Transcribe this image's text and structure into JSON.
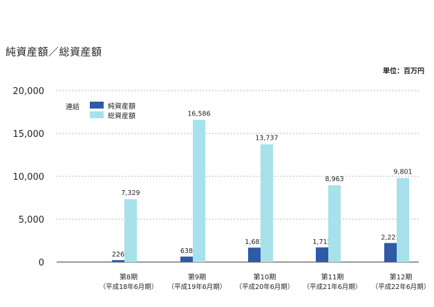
{
  "chart_data": {
    "type": "bar",
    "title": "純資産額／総資産額",
    "unit": "単位：百万円",
    "categories": [
      "第8期",
      "第9期",
      "第10期",
      "第11期",
      "第12期"
    ],
    "category_sublabels": [
      "（平成18年6月期）",
      "（平成19年6月期）",
      "（平成20年6月期）",
      "（平成21年6月期）",
      "（平成22年6月期）"
    ],
    "legend_group": "連結",
    "series": [
      {
        "name": "純資産額",
        "color": "#2e5aa8",
        "values": [
          226,
          638,
          1683,
          1712,
          2221
        ],
        "labels": [
          "226",
          "638",
          "1,683",
          "1,712",
          "2,221"
        ]
      },
      {
        "name": "総資産額",
        "color": "#a6e1ec",
        "values": [
          7329,
          16586,
          13737,
          8963,
          9801
        ],
        "labels": [
          "7,329",
          "16,586",
          "13,737",
          "8,963",
          "9,801"
        ]
      }
    ],
    "yticks": [
      0,
      5000,
      10000,
      15000,
      20000
    ],
    "ytick_labels": [
      "0",
      "5,000",
      "10,000",
      "15,000",
      "20,000"
    ],
    "ylim": [
      0,
      20000
    ],
    "grid": true,
    "legend_position": "top-left"
  }
}
